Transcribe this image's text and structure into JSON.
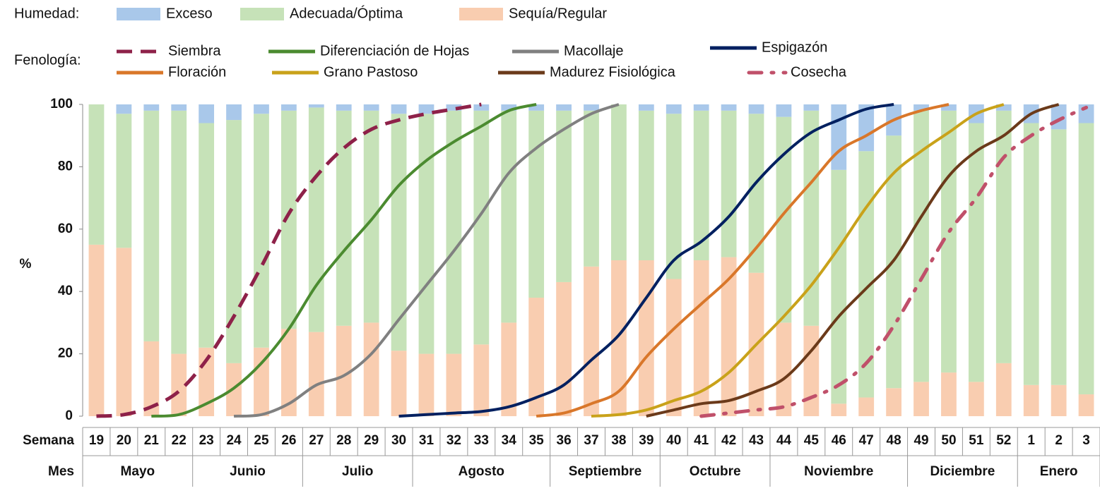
{
  "chart_data": {
    "type": "bar",
    "humidity_legend_title": "Humedad:",
    "phenology_legend_title": "Fenología:",
    "ylabel": "%",
    "xlabel": "Semana",
    "month_label": "Mes",
    "ylim": [
      0,
      100
    ],
    "yticks": [
      0,
      20,
      40,
      60,
      80,
      100
    ],
    "categories": [
      "19",
      "20",
      "21",
      "22",
      "23",
      "24",
      "25",
      "26",
      "27",
      "28",
      "29",
      "30",
      "31",
      "32",
      "33",
      "34",
      "35",
      "36",
      "37",
      "38",
      "39",
      "40",
      "41",
      "42",
      "43",
      "44",
      "45",
      "46",
      "47",
      "48",
      "49",
      "50",
      "51",
      "52",
      "1",
      "2",
      "3"
    ],
    "months": [
      {
        "label": "Mayo",
        "weeks": 4
      },
      {
        "label": "Junio",
        "weeks": 4
      },
      {
        "label": "Julio",
        "weeks": 4
      },
      {
        "label": "Agosto",
        "weeks": 5
      },
      {
        "label": "Septiembre",
        "weeks": 4
      },
      {
        "label": "Octubre",
        "weeks": 4
      },
      {
        "label": "Noviembre",
        "weeks": 5
      },
      {
        "label": "Diciembre",
        "weeks": 4
      },
      {
        "label": "Enero",
        "weeks": 3
      }
    ],
    "bar_series": [
      {
        "name": "Exceso",
        "color": "#a9c8ea",
        "values": [
          0,
          3,
          2,
          2,
          6,
          5,
          3,
          2,
          1,
          2,
          2,
          3,
          3,
          2,
          2,
          2,
          2,
          2,
          2,
          0,
          2,
          3,
          2,
          2,
          3,
          4,
          2,
          21,
          15,
          10,
          2,
          2,
          6,
          2,
          6,
          8,
          6
        ]
      },
      {
        "name": "Adecuada/Óptima",
        "color": "#c6e2b8",
        "values": [
          45,
          43,
          74,
          78,
          72,
          78,
          75,
          70,
          72,
          69,
          68,
          76,
          77,
          78,
          75,
          68,
          60,
          55,
          50,
          50,
          48,
          53,
          48,
          47,
          51,
          66,
          69,
          75,
          79,
          81,
          87,
          84,
          83,
          81,
          84,
          82,
          87
        ]
      },
      {
        "name": "Sequía/Regular",
        "color": "#f9cdb0",
        "values": [
          55,
          54,
          24,
          20,
          22,
          17,
          22,
          28,
          27,
          29,
          30,
          21,
          20,
          20,
          23,
          30,
          38,
          43,
          48,
          50,
          50,
          44,
          50,
          51,
          46,
          30,
          29,
          4,
          6,
          9,
          11,
          14,
          11,
          17,
          10,
          10,
          7
        ]
      }
    ],
    "series": [
      {
        "name": "Siembra",
        "color": "#8e2149",
        "dash": "dash",
        "values": [
          0,
          0.5,
          3,
          8,
          18,
          32,
          48,
          65,
          77,
          86,
          92,
          95,
          97,
          98.5,
          100,
          null,
          null,
          null,
          null,
          null,
          null,
          null,
          null,
          null,
          null,
          null,
          null,
          null,
          null,
          null,
          null,
          null,
          null,
          null,
          null,
          null,
          null
        ]
      },
      {
        "name": "Diferenciación de Hojas",
        "color": "#4b8b30",
        "dash": "solid",
        "values": [
          null,
          null,
          0,
          0.5,
          4,
          9,
          17,
          28,
          42,
          53,
          63,
          74,
          82,
          88,
          93,
          98,
          100,
          null,
          null,
          null,
          null,
          null,
          null,
          null,
          null,
          null,
          null,
          null,
          null,
          null,
          null,
          null,
          null,
          null,
          null,
          null,
          null
        ]
      },
      {
        "name": "Macollaje",
        "color": "#808080",
        "dash": "solid",
        "values": [
          null,
          null,
          null,
          null,
          null,
          0,
          0.5,
          4,
          10,
          13,
          20,
          31,
          42,
          53,
          65,
          78,
          86,
          92,
          97,
          100,
          null,
          null,
          null,
          null,
          null,
          null,
          null,
          null,
          null,
          null,
          null,
          null,
          null,
          null,
          null,
          null,
          null
        ]
      },
      {
        "name": "Espigazón",
        "color": "#002060",
        "dash": "solid",
        "values": [
          null,
          null,
          null,
          null,
          null,
          null,
          null,
          null,
          null,
          null,
          null,
          0,
          0.5,
          1,
          1.5,
          3,
          6,
          10,
          18,
          26,
          38,
          50,
          56,
          64,
          75,
          84,
          91,
          95,
          98.5,
          100,
          null,
          null,
          null,
          null,
          null,
          null,
          null
        ]
      },
      {
        "name": "Floración",
        "color": "#d9772a",
        "dash": "solid",
        "values": [
          null,
          null,
          null,
          null,
          null,
          null,
          null,
          null,
          null,
          null,
          null,
          null,
          null,
          null,
          null,
          null,
          0,
          1,
          4,
          8,
          19,
          28,
          36,
          44,
          54,
          65,
          75,
          85,
          90,
          95,
          98,
          100,
          null,
          null,
          null,
          null,
          null
        ]
      },
      {
        "name": "Grano Pastoso",
        "color": "#c9a21a",
        "dash": "solid",
        "values": [
          null,
          null,
          null,
          null,
          null,
          null,
          null,
          null,
          null,
          null,
          null,
          null,
          null,
          null,
          null,
          null,
          null,
          null,
          0,
          0.5,
          2,
          5,
          8,
          14,
          23,
          32,
          42,
          54,
          67,
          78,
          85,
          91,
          97,
          100,
          null,
          null,
          null
        ]
      },
      {
        "name": "Madurez Fisiológica",
        "color": "#6b3a1a",
        "dash": "solid",
        "values": [
          null,
          null,
          null,
          null,
          null,
          null,
          null,
          null,
          null,
          null,
          null,
          null,
          null,
          null,
          null,
          null,
          null,
          null,
          null,
          null,
          0,
          2,
          4,
          5,
          8,
          12,
          21,
          32,
          41,
          50,
          64,
          77,
          85,
          90,
          97,
          100,
          null
        ]
      },
      {
        "name": "Cosecha",
        "color": "#c0506a",
        "dash": "dashdot",
        "values": [
          null,
          null,
          null,
          null,
          null,
          null,
          null,
          null,
          null,
          null,
          null,
          null,
          null,
          null,
          null,
          null,
          null,
          null,
          null,
          null,
          null,
          null,
          0,
          1,
          2,
          3,
          6,
          10,
          17,
          29,
          44,
          59,
          70,
          83,
          90,
          95,
          99
        ]
      }
    ]
  }
}
